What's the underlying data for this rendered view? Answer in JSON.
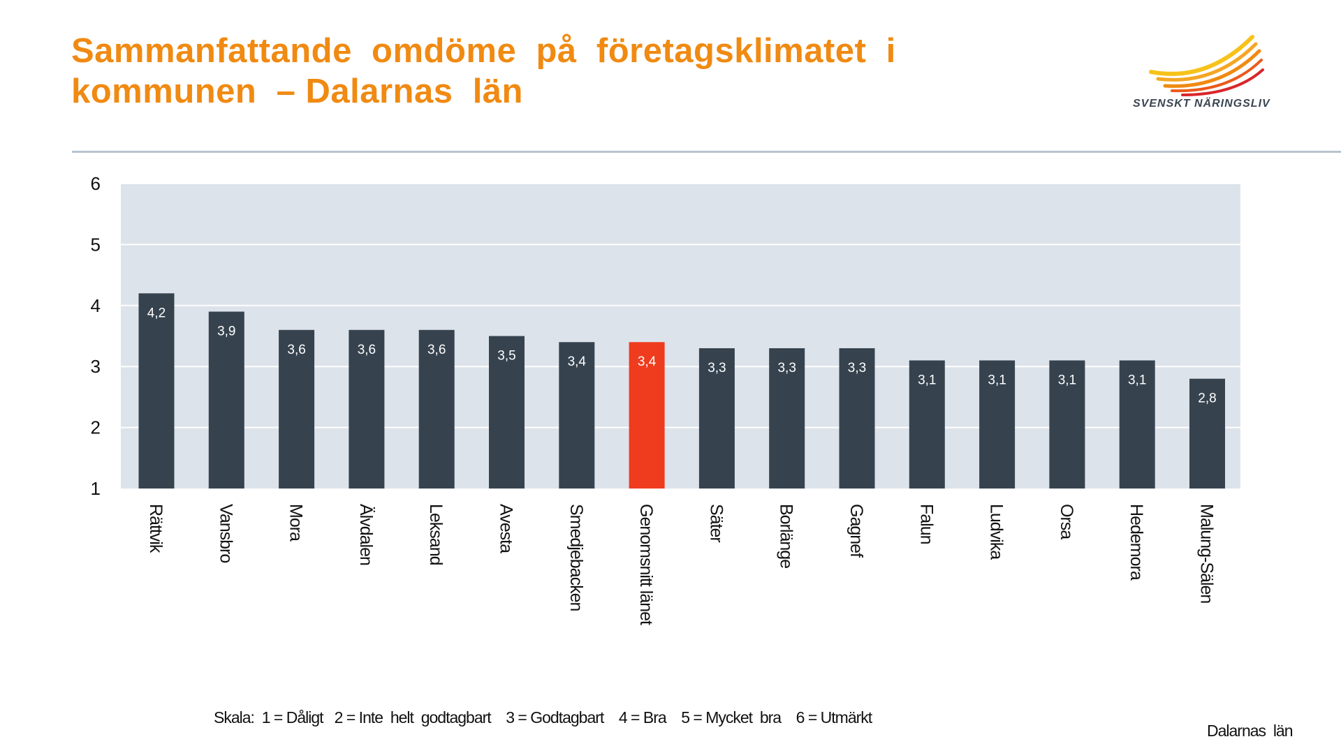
{
  "title_lines": [
    "Sammanfattande  omdöme  på  företagsklimatet  i",
    "kommunen  – Dalarnas  län"
  ],
  "logo": {
    "text": "SVENSKT NÄRINGSLIV"
  },
  "chart_data": {
    "type": "bar",
    "categories": [
      "Rättvik",
      "Vansbro",
      "Mora",
      "Älvdalen",
      "Leksand",
      "Avesta",
      "Smedjebacken",
      "Genomsnitt länet",
      "Säter",
      "Borlänge",
      "Gagnef",
      "Falun",
      "Ludvika",
      "Orsa",
      "Hedemora",
      "Malung-Sälen"
    ],
    "values": [
      4.2,
      3.9,
      3.6,
      3.6,
      3.6,
      3.5,
      3.4,
      3.4,
      3.3,
      3.3,
      3.3,
      3.1,
      3.1,
      3.1,
      3.1,
      2.8
    ],
    "data_labels": [
      "4,2",
      "3,9",
      "3,6",
      "3,6",
      "3,6",
      "3,5",
      "3,4",
      "3,4",
      "3,3",
      "3,3",
      "3,3",
      "3,1",
      "3,1",
      "3,1",
      "3,1",
      "2,8"
    ],
    "highlight_category": "Genomsnitt länet",
    "ylim": [
      1,
      6
    ],
    "yticks": [
      "1",
      "2",
      "3",
      "4",
      "5",
      "6"
    ],
    "grid": true,
    "colors": {
      "bar": "#36434f",
      "highlight": "#f03c1e",
      "plot_bg": "#dde3ea",
      "title": "#f08a12"
    }
  },
  "footer": {
    "scale": "Skala:  1 = Dåligt   2 = Inte  helt  godtagbart    3 = Godtagbart    4 = Bra    5 = Mycket  bra    6 = Utmärkt",
    "region": "Dalarnas  län"
  }
}
